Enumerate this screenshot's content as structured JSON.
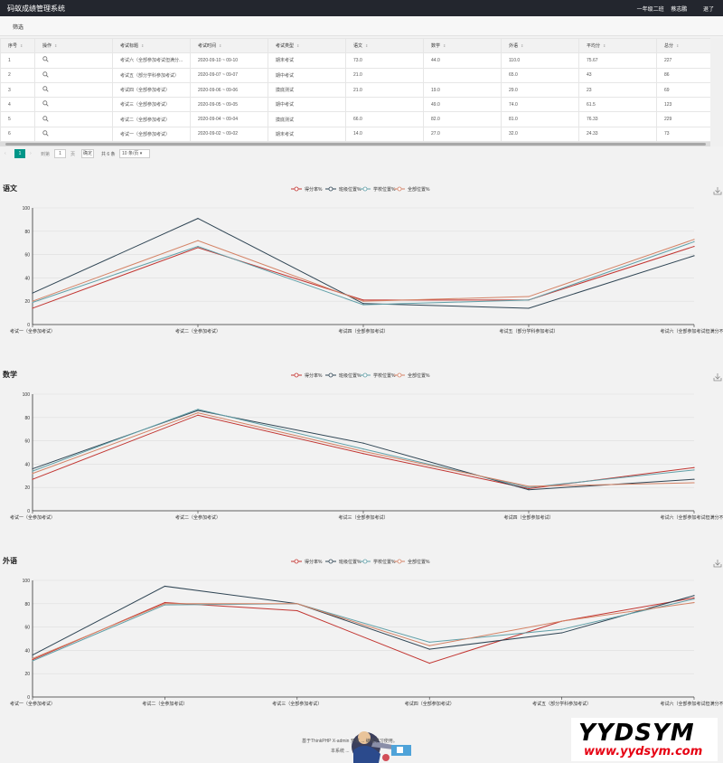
{
  "app": {
    "title": "码蚁成绩管理系统",
    "user_class": "一年级二班",
    "user_name": "蔡志鹏",
    "logout": "退了"
  },
  "toolbar": {
    "filter_label": "筛选"
  },
  "table": {
    "sort_glyph": "⇕",
    "columns": [
      "序号",
      "操作",
      "考试标题",
      "考试时间",
      "考试类型",
      "语文",
      "数学",
      "外语",
      "平均分",
      "总分"
    ],
    "rows": [
      [
        "1",
        "",
        "考试六（全部参加考试但满分...",
        "2020-09-10 ~ 09-10",
        "期末考试",
        "73.0",
        "44.0",
        "110.0",
        "75.67",
        "227"
      ],
      [
        "2",
        "",
        "考试五（部分学科参加考试）",
        "2020-09-07 ~ 09-07",
        "期中考试",
        "21.0",
        "",
        "65.0",
        "43",
        "86"
      ],
      [
        "3",
        "",
        "考试四（全部参加考试）",
        "2020-09-06 ~ 09-06",
        "摸底测试",
        "21.0",
        "19.0",
        "29.0",
        "23",
        "69"
      ],
      [
        "4",
        "",
        "考试三（全部参加考试）",
        "2020-09-05 ~ 09-05",
        "期中考试",
        "",
        "49.0",
        "74.0",
        "61.5",
        "123"
      ],
      [
        "5",
        "",
        "考试二（全部参加考试）",
        "2020-09-04 ~ 09-04",
        "摸底测试",
        "66.0",
        "82.0",
        "81.0",
        "76.33",
        "229"
      ],
      [
        "6",
        "",
        "考试一（全部参加考试）",
        "2020-09-02 ~ 09-02",
        "期末考试",
        "14.0",
        "27.0",
        "32.0",
        "24.33",
        "73"
      ]
    ]
  },
  "pager": {
    "prev": "‹",
    "current": "1",
    "next": "›",
    "goto": "到第",
    "input_value": "1",
    "unit": "页",
    "ok": "确定",
    "total": "共 6 条",
    "page_size": "10 条/页 ▾"
  },
  "colors": {
    "score": "#c23531",
    "class": "#2f4554",
    "school": "#61a0a8",
    "all": "#d48265",
    "accent": "#009688"
  },
  "chart_data": [
    {
      "type": "line",
      "title": "语文",
      "categories": [
        "考试一（全参加考试）",
        "考试二（全参加考试）",
        "考试四（全部参加考试）",
        "考试五（部分学科参加考试）",
        "考试六（全部参加考试但满分不同"
      ],
      "ylim": [
        0,
        100
      ],
      "yticks": [
        0,
        20,
        40,
        60,
        80,
        100
      ],
      "legend_position": "top-center",
      "series": [
        {
          "name": "得分率%",
          "color": "#c23531",
          "values": [
            14,
            66,
            21,
            21,
            67
          ]
        },
        {
          "name": "班级位置%",
          "color": "#2f4554",
          "values": [
            27,
            91,
            18,
            14,
            59
          ]
        },
        {
          "name": "学校位置%",
          "color": "#61a0a8",
          "values": [
            19,
            67,
            17,
            21,
            71
          ]
        },
        {
          "name": "全部位置%",
          "color": "#d48265",
          "values": [
            20,
            72,
            20,
            24,
            73
          ]
        }
      ]
    },
    {
      "type": "line",
      "title": "数学",
      "categories": [
        "考试一（全参加考试）",
        "考试二（全参加考试）",
        "考试三（全部参加考试）",
        "考试四（全部参加考试）",
        "考试六（全部参加考试但满分不同"
      ],
      "ylim": [
        0,
        100
      ],
      "yticks": [
        0,
        20,
        40,
        60,
        80,
        100
      ],
      "legend_position": "top-center",
      "series": [
        {
          "name": "得分率%",
          "color": "#c23531",
          "values": [
            27,
            82,
            49,
            19,
            37
          ]
        },
        {
          "name": "班级位置%",
          "color": "#2f4554",
          "values": [
            36,
            86,
            58,
            18,
            27
          ]
        },
        {
          "name": "学校位置%",
          "color": "#61a0a8",
          "values": [
            34,
            87,
            53,
            20,
            35
          ]
        },
        {
          "name": "全部位置%",
          "color": "#d48265",
          "values": [
            32,
            84,
            51,
            21,
            24
          ]
        }
      ]
    },
    {
      "type": "line",
      "title": "外语",
      "categories": [
        "考试一（全参加考试）",
        "考试二（全参加考试）",
        "考试三（全部参加考试）",
        "考试四（全部参加考试）",
        "考试五（部分学科参加考试）",
        "考试六（全部参加考试但满分不同"
      ],
      "ylim": [
        0,
        100
      ],
      "yticks": [
        0,
        20,
        40,
        60,
        80,
        100
      ],
      "legend_position": "top-center",
      "series": [
        {
          "name": "得分率%",
          "color": "#c23531",
          "values": [
            32,
            81,
            74,
            29,
            65,
            85
          ]
        },
        {
          "name": "班级位置%",
          "color": "#2f4554",
          "values": [
            36,
            95,
            80,
            41,
            55,
            87
          ]
        },
        {
          "name": "学校位置%",
          "color": "#61a0a8",
          "values": [
            31,
            79,
            80,
            47,
            58,
            84
          ]
        },
        {
          "name": "全部位置%",
          "color": "#d48265",
          "values": [
            33,
            80,
            80,
            44,
            65,
            81
          ]
        }
      ]
    }
  ],
  "footer": {
    "line1": "基于ThinkPHP X-admin 开发 ... 编程学习使用。",
    "line2": "本系统 ..."
  },
  "watermark": {
    "brand": "YYDSYM",
    "url": "www.yydsym.com"
  }
}
